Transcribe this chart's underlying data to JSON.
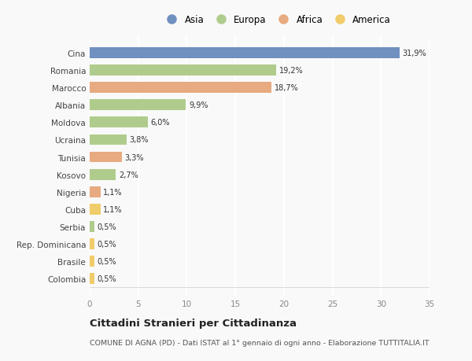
{
  "countries": [
    "Cina",
    "Romania",
    "Marocco",
    "Albania",
    "Moldova",
    "Ucraina",
    "Tunisia",
    "Kosovo",
    "Nigeria",
    "Cuba",
    "Serbia",
    "Rep. Dominicana",
    "Brasile",
    "Colombia"
  ],
  "values": [
    31.9,
    19.2,
    18.7,
    9.9,
    6.0,
    3.8,
    3.3,
    2.7,
    1.1,
    1.1,
    0.5,
    0.5,
    0.5,
    0.5
  ],
  "labels": [
    "31,9%",
    "19,2%",
    "18,7%",
    "9,9%",
    "6,0%",
    "3,8%",
    "3,3%",
    "2,7%",
    "1,1%",
    "1,1%",
    "0,5%",
    "0,5%",
    "0,5%",
    "0,5%"
  ],
  "continents": [
    "Asia",
    "Europa",
    "Africa",
    "Europa",
    "Europa",
    "Europa",
    "Africa",
    "Europa",
    "Africa",
    "America",
    "Europa",
    "America",
    "America",
    "America"
  ],
  "colors": {
    "Asia": "#7090c0",
    "Europa": "#b0cc8c",
    "Africa": "#e8aa80",
    "America": "#f0cc6a"
  },
  "legend_order": [
    "Asia",
    "Europa",
    "Africa",
    "America"
  ],
  "xlim": [
    0,
    35
  ],
  "xticks": [
    0,
    5,
    10,
    15,
    20,
    25,
    30,
    35
  ],
  "title": "Cittadini Stranieri per Cittadinanza",
  "subtitle": "COMUNE DI AGNA (PD) - Dati ISTAT al 1° gennaio di ogni anno - Elaborazione TUTTITALIA.IT",
  "bg_color": "#f9f9f9",
  "grid_color": "#ffffff",
  "bar_height": 0.62
}
